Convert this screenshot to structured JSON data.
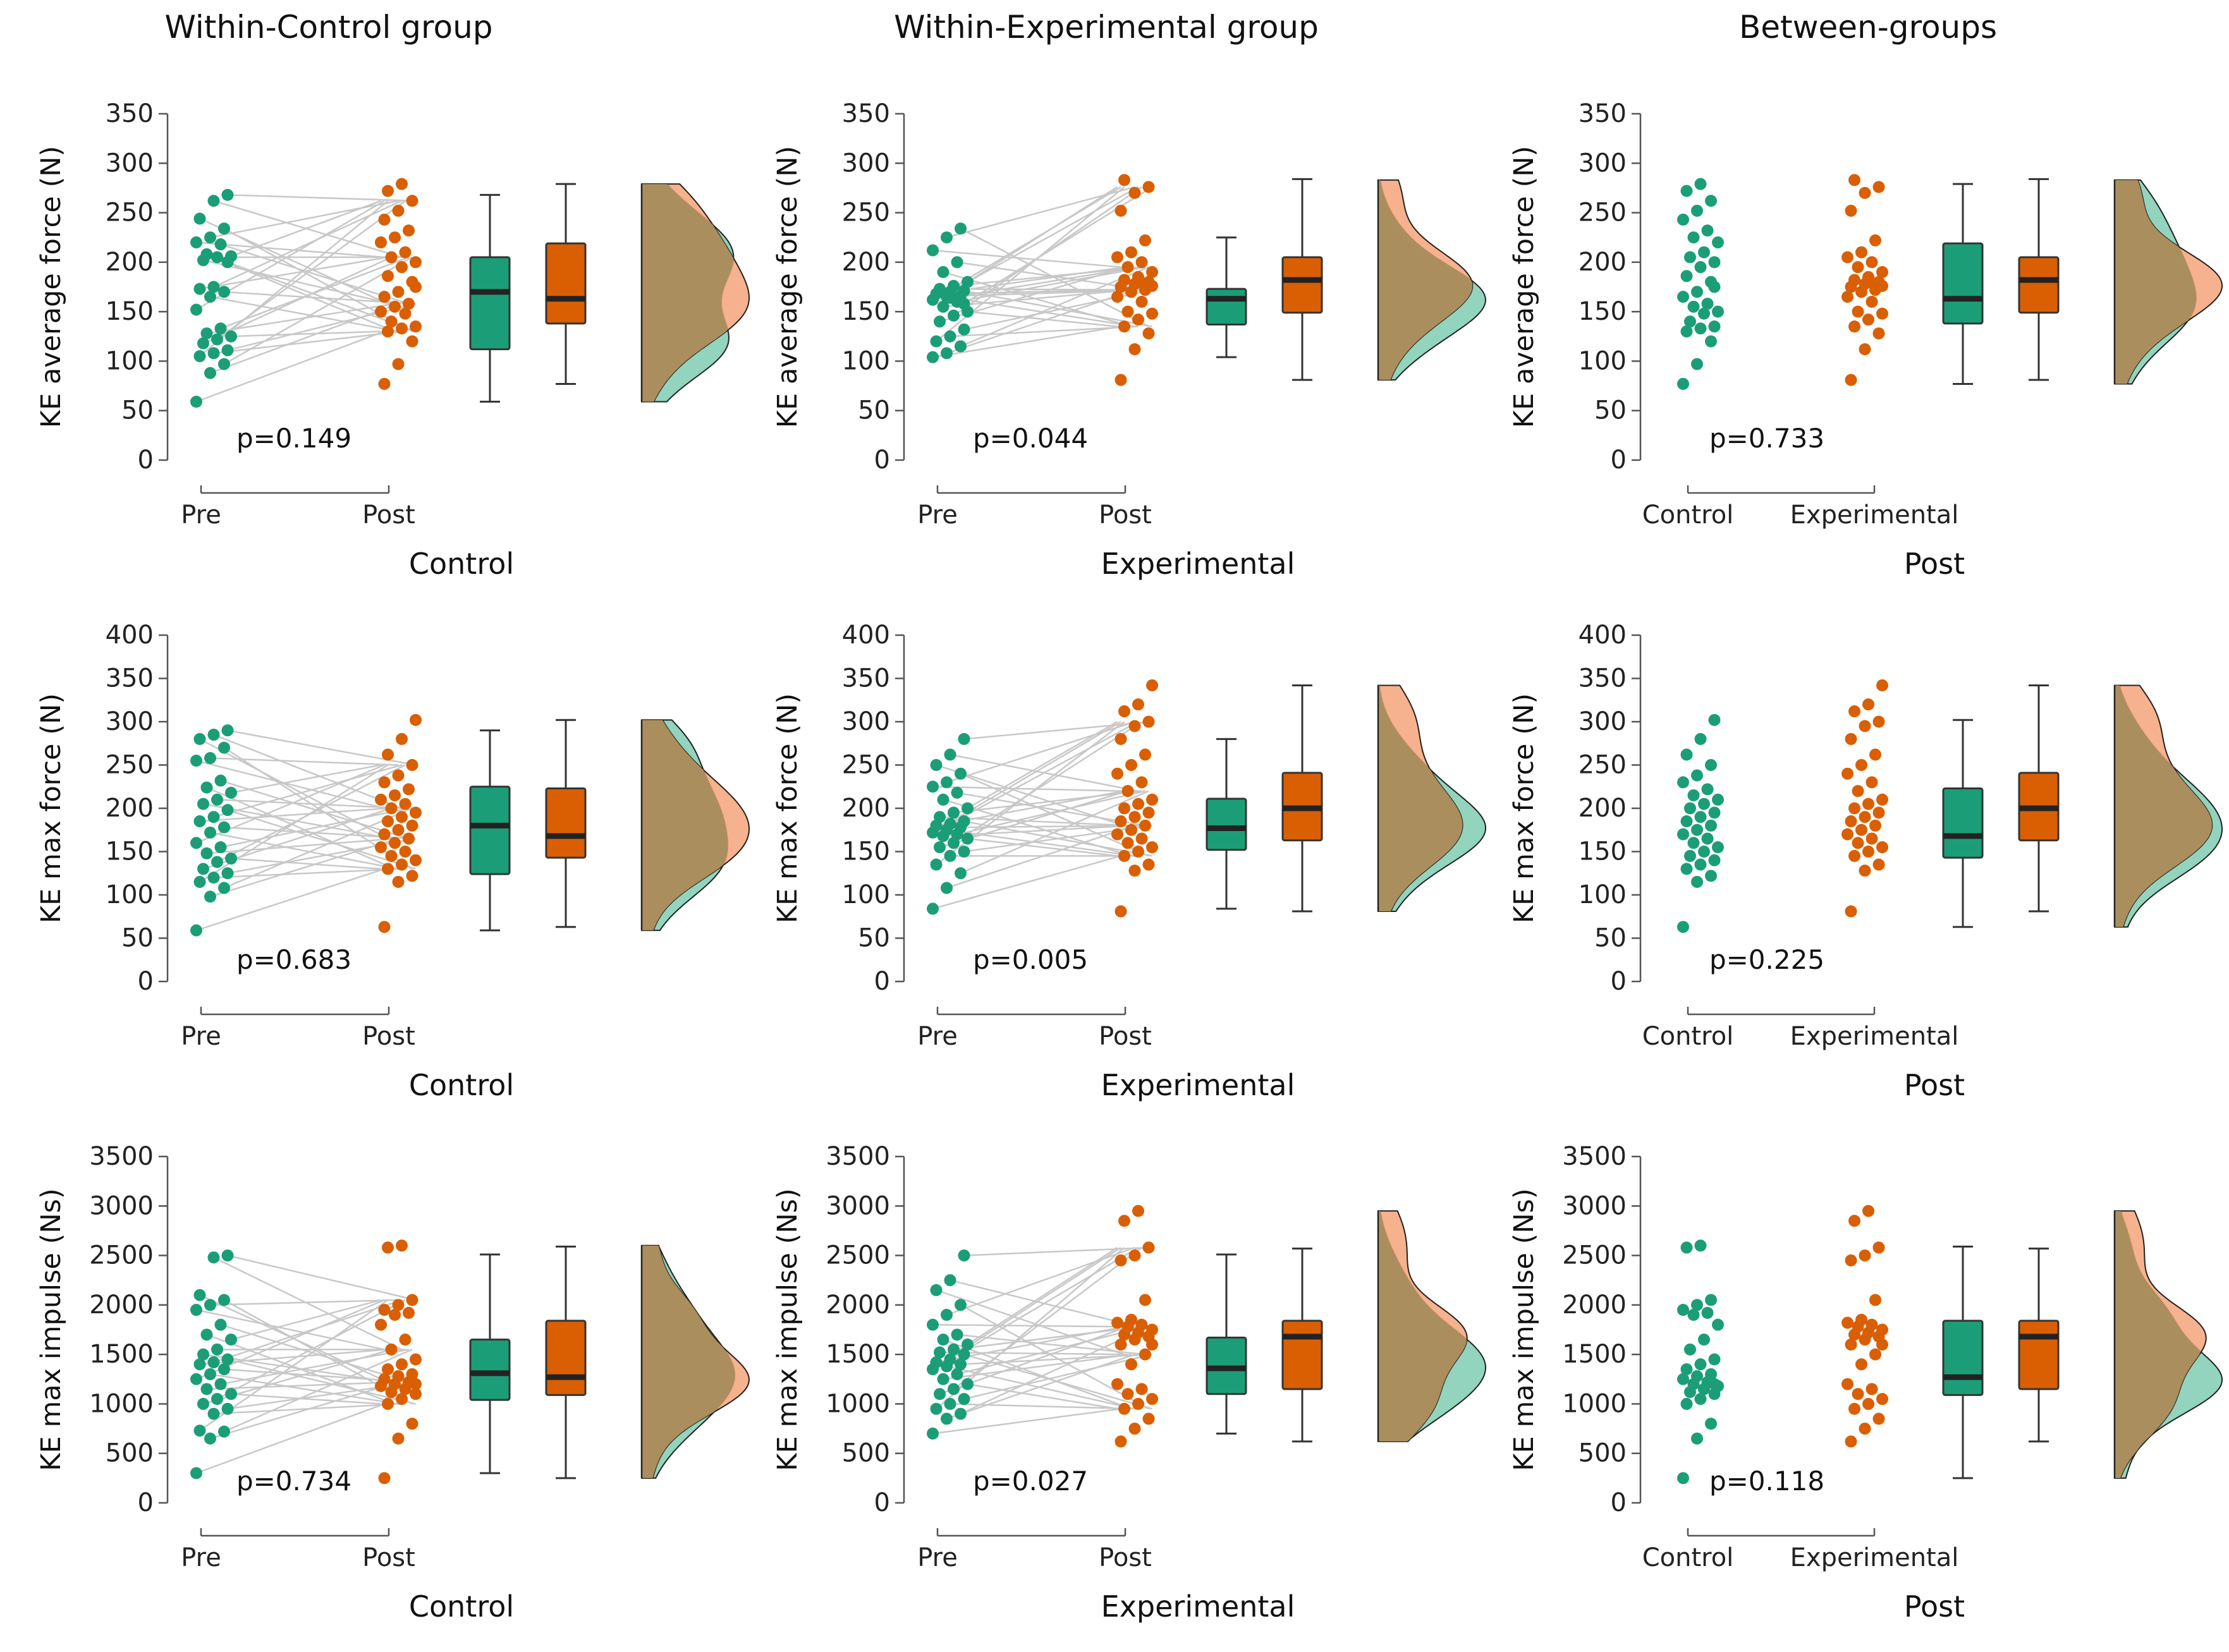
{
  "colors": {
    "control": "#1b9e77",
    "experimental": "#d95f02",
    "control_density": "#7fcdb2",
    "experimental_density": "#f4a57a",
    "overlap_density": "#a88c5c",
    "line": "#c8c8c8"
  },
  "column_titles": [
    "Within-Control group",
    "Within-Experimental group",
    "Between-groups"
  ],
  "chart_data": [
    {
      "type": "raincloud-paired",
      "row": 0,
      "col": 0,
      "title": "Within-Control group",
      "ylabel": "KE average force (N)",
      "xlabel": "Control",
      "ticks": [
        0,
        50,
        100,
        150,
        200,
        250,
        300,
        350
      ],
      "ylim": [
        0,
        350
      ],
      "tick_labels": [
        "Pre",
        "Post"
      ],
      "p_value": "p=0.149",
      "pre": [
        59,
        88,
        97,
        105,
        108,
        111,
        118,
        122,
        125,
        128,
        133,
        152,
        165,
        170,
        173,
        175,
        200,
        202,
        205,
        206,
        208,
        218,
        220,
        225,
        234,
        244,
        262,
        268
      ],
      "post": [
        77,
        97,
        120,
        130,
        133,
        135,
        140,
        148,
        150,
        155,
        158,
        165,
        170,
        180,
        186,
        195,
        200,
        205,
        210,
        220,
        225,
        232,
        243,
        252,
        262,
        272,
        279,
        175
      ],
      "box_a": {
        "min": 59,
        "q1": 112,
        "median": 170,
        "q3": 205,
        "max": 268
      },
      "box_b": {
        "min": 77,
        "q1": 138,
        "median": 163,
        "q3": 219,
        "max": 279
      }
    },
    {
      "type": "raincloud-paired",
      "row": 0,
      "col": 1,
      "title": "Within-Experimental group",
      "ylabel": "KE average force (N)",
      "xlabel": "Experimental",
      "ticks": [
        0,
        50,
        100,
        150,
        200,
        250,
        300,
        350
      ],
      "ylim": [
        0,
        350
      ],
      "tick_labels": [
        "Pre",
        "Post"
      ],
      "p_value": "p=0.044",
      "pre": [
        104,
        108,
        115,
        120,
        125,
        132,
        140,
        146,
        150,
        155,
        160,
        162,
        165,
        166,
        168,
        170,
        171,
        173,
        176,
        180,
        190,
        200,
        212,
        225,
        234,
        168,
        164,
        158
      ],
      "post": [
        81,
        112,
        128,
        135,
        142,
        148,
        150,
        160,
        165,
        170,
        172,
        175,
        178,
        180,
        182,
        185,
        190,
        195,
        200,
        205,
        210,
        222,
        252,
        270,
        276,
        283,
        180,
        176
      ],
      "box_a": {
        "min": 104,
        "q1": 137,
        "median": 163,
        "q3": 173,
        "max": 225
      },
      "box_b": {
        "min": 81,
        "q1": 149,
        "median": 182,
        "q3": 205,
        "max": 284
      }
    },
    {
      "type": "raincloud-groups",
      "row": 0,
      "col": 2,
      "title": "Between-groups",
      "ylabel": "KE average force (N)",
      "xlabel": "Post",
      "ticks": [
        0,
        50,
        100,
        150,
        200,
        250,
        300,
        350
      ],
      "ylim": [
        0,
        350
      ],
      "tick_labels": [
        "Control",
        "Experimental"
      ],
      "p_value": "p=0.733",
      "a": [
        77,
        97,
        120,
        130,
        133,
        135,
        140,
        148,
        150,
        155,
        158,
        165,
        170,
        180,
        186,
        195,
        200,
        205,
        210,
        220,
        225,
        232,
        243,
        252,
        262,
        272,
        279,
        175
      ],
      "b": [
        81,
        112,
        128,
        135,
        142,
        148,
        150,
        160,
        165,
        170,
        172,
        175,
        178,
        180,
        182,
        185,
        190,
        195,
        200,
        205,
        210,
        222,
        252,
        270,
        276,
        283,
        180,
        176
      ],
      "box_a": {
        "min": 77,
        "q1": 138,
        "median": 163,
        "q3": 219,
        "max": 279
      },
      "box_b": {
        "min": 81,
        "q1": 149,
        "median": 182,
        "q3": 205,
        "max": 284
      }
    },
    {
      "type": "raincloud-paired",
      "row": 1,
      "col": 0,
      "title": "Within-Control group",
      "ylabel": "KE max force (N)",
      "xlabel": "Control",
      "ticks": [
        0,
        50,
        100,
        150,
        200,
        250,
        300,
        350,
        400
      ],
      "ylim": [
        0,
        400
      ],
      "tick_labels": [
        "Pre",
        "Post"
      ],
      "p_value": "p=0.683",
      "pre": [
        59,
        98,
        108,
        115,
        120,
        125,
        130,
        138,
        142,
        148,
        155,
        160,
        172,
        178,
        185,
        190,
        198,
        205,
        210,
        218,
        224,
        232,
        255,
        258,
        270,
        280,
        285,
        290
      ],
      "post": [
        63,
        115,
        122,
        130,
        135,
        140,
        145,
        150,
        155,
        160,
        165,
        170,
        175,
        180,
        185,
        190,
        195,
        200,
        205,
        210,
        215,
        222,
        230,
        238,
        250,
        262,
        280,
        302
      ],
      "box_a": {
        "min": 59,
        "q1": 124,
        "median": 180,
        "q3": 225,
        "max": 290
      },
      "box_b": {
        "min": 63,
        "q1": 143,
        "median": 168,
        "q3": 223,
        "max": 302
      }
    },
    {
      "type": "raincloud-paired",
      "row": 1,
      "col": 1,
      "title": "Within-Experimental group",
      "ylabel": "KE max force (N)",
      "xlabel": "Experimental",
      "ticks": [
        0,
        50,
        100,
        150,
        200,
        250,
        300,
        350,
        400
      ],
      "ylim": [
        0,
        400
      ],
      "tick_labels": [
        "Pre",
        "Post"
      ],
      "p_value": "p=0.005",
      "pre": [
        84,
        108,
        125,
        135,
        145,
        150,
        155,
        160,
        165,
        168,
        170,
        172,
        175,
        178,
        180,
        182,
        185,
        190,
        195,
        200,
        210,
        218,
        225,
        230,
        240,
        250,
        262,
        280
      ],
      "post": [
        81,
        128,
        135,
        145,
        150,
        155,
        160,
        165,
        170,
        175,
        180,
        185,
        190,
        195,
        200,
        205,
        210,
        220,
        230,
        240,
        250,
        262,
        280,
        295,
        300,
        312,
        320,
        342
      ],
      "box_a": {
        "min": 84,
        "q1": 152,
        "median": 177,
        "q3": 211,
        "max": 280
      },
      "box_b": {
        "min": 81,
        "q1": 163,
        "median": 200,
        "q3": 241,
        "max": 342
      }
    },
    {
      "type": "raincloud-groups",
      "row": 1,
      "col": 2,
      "title": "Between-groups",
      "ylabel": "KE max force (N)",
      "xlabel": "Post",
      "ticks": [
        0,
        50,
        100,
        150,
        200,
        250,
        300,
        350,
        400
      ],
      "ylim": [
        0,
        400
      ],
      "tick_labels": [
        "Control",
        "Experimental"
      ],
      "p_value": "p=0.225",
      "a": [
        63,
        115,
        122,
        130,
        135,
        140,
        145,
        150,
        155,
        160,
        165,
        170,
        175,
        180,
        185,
        190,
        195,
        200,
        205,
        210,
        215,
        222,
        230,
        238,
        250,
        262,
        280,
        302
      ],
      "b": [
        81,
        128,
        135,
        145,
        150,
        155,
        160,
        165,
        170,
        175,
        180,
        185,
        190,
        195,
        200,
        205,
        210,
        220,
        230,
        240,
        250,
        262,
        280,
        295,
        300,
        312,
        320,
        342
      ],
      "box_a": {
        "min": 63,
        "q1": 143,
        "median": 168,
        "q3": 223,
        "max": 302
      },
      "box_b": {
        "min": 81,
        "q1": 163,
        "median": 200,
        "q3": 241,
        "max": 342
      }
    },
    {
      "type": "raincloud-paired",
      "row": 2,
      "col": 0,
      "title": "Within-Control group",
      "ylabel": "KE max impulse (Ns)",
      "xlabel": "Control",
      "ticks": [
        0,
        500,
        1000,
        1500,
        2000,
        2500,
        3000,
        3500
      ],
      "ylim": [
        0,
        3500
      ],
      "tick_labels": [
        "Pre",
        "Post"
      ],
      "p_value": "p=0.734",
      "pre": [
        300,
        650,
        720,
        730,
        900,
        950,
        1000,
        1050,
        1100,
        1150,
        1200,
        1250,
        1300,
        1350,
        1400,
        1420,
        1450,
        1500,
        1550,
        1650,
        1700,
        1800,
        1950,
        2000,
        2050,
        2100,
        2480,
        2500
      ],
      "post": [
        250,
        650,
        800,
        1000,
        1050,
        1100,
        1120,
        1150,
        1180,
        1200,
        1220,
        1250,
        1280,
        1300,
        1350,
        1400,
        1450,
        1550,
        1650,
        1800,
        1900,
        1920,
        1950,
        2000,
        2050,
        2580,
        2600,
        1200
      ],
      "box_a": {
        "min": 300,
        "q1": 1040,
        "median": 1310,
        "q3": 1650,
        "max": 2510
      },
      "box_b": {
        "min": 250,
        "q1": 1090,
        "median": 1270,
        "q3": 1840,
        "max": 2590
      }
    },
    {
      "type": "raincloud-paired",
      "row": 2,
      "col": 1,
      "title": "Within-Experimental group",
      "ylabel": "KE max impulse (Ns)",
      "xlabel": "Experimental",
      "ticks": [
        0,
        500,
        1000,
        1500,
        2000,
        2500,
        3000,
        3500
      ],
      "ylim": [
        0,
        3500
      ],
      "tick_labels": [
        "Pre",
        "Post"
      ],
      "p_value": "p=0.027",
      "pre": [
        700,
        850,
        900,
        950,
        1000,
        1050,
        1100,
        1150,
        1200,
        1250,
        1300,
        1350,
        1380,
        1400,
        1420,
        1450,
        1500,
        1520,
        1550,
        1600,
        1650,
        1700,
        1800,
        1900,
        2000,
        2150,
        2250,
        2500
      ],
      "post": [
        620,
        750,
        850,
        950,
        1000,
        1050,
        1100,
        1150,
        1200,
        1400,
        1500,
        1600,
        1650,
        1680,
        1700,
        1720,
        1750,
        1780,
        1800,
        1820,
        1850,
        2050,
        2450,
        2500,
        2580,
        2850,
        2950,
        1600
      ],
      "box_a": {
        "min": 700,
        "q1": 1100,
        "median": 1360,
        "q3": 1670,
        "max": 2510
      },
      "box_b": {
        "min": 620,
        "q1": 1150,
        "median": 1680,
        "q3": 1840,
        "max": 2570
      }
    },
    {
      "type": "raincloud-groups",
      "row": 2,
      "col": 2,
      "title": "Between-groups",
      "ylabel": "KE max impulse (Ns)",
      "xlabel": "Post",
      "ticks": [
        0,
        500,
        1000,
        1500,
        2000,
        2500,
        3000,
        3500
      ],
      "ylim": [
        0,
        3500
      ],
      "tick_labels": [
        "Control",
        "Experimental"
      ],
      "p_value": "p=0.118",
      "a": [
        250,
        650,
        800,
        1000,
        1050,
        1100,
        1120,
        1150,
        1180,
        1200,
        1220,
        1250,
        1280,
        1300,
        1350,
        1400,
        1450,
        1550,
        1650,
        1800,
        1900,
        1920,
        1950,
        2000,
        2050,
        2580,
        2600,
        1200
      ],
      "b": [
        620,
        750,
        850,
        950,
        1000,
        1050,
        1100,
        1150,
        1200,
        1400,
        1500,
        1600,
        1650,
        1680,
        1700,
        1720,
        1750,
        1780,
        1800,
        1820,
        1850,
        2050,
        2450,
        2500,
        2580,
        2850,
        2950,
        1600
      ],
      "box_a": {
        "min": 250,
        "q1": 1090,
        "median": 1270,
        "q3": 1840,
        "max": 2590
      },
      "box_b": {
        "min": 620,
        "q1": 1150,
        "median": 1680,
        "q3": 1840,
        "max": 2570
      }
    }
  ]
}
